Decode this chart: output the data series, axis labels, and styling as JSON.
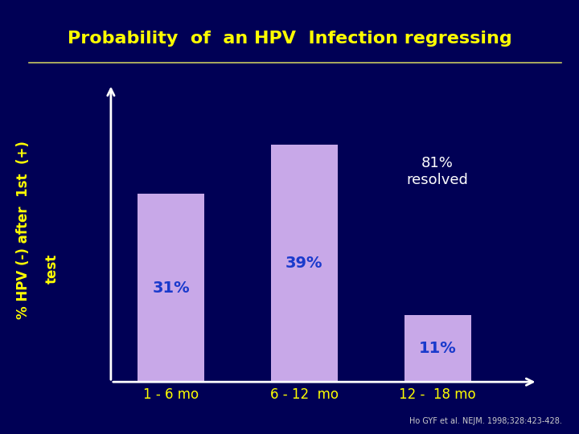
{
  "title": "Probability  of  an HPV  Infection regressing",
  "categories": [
    "1 - 6 mo",
    "6 - 12  mo",
    "12 -  18 mo"
  ],
  "values": [
    31,
    39,
    11
  ],
  "bar_color": "#C8A8E8",
  "bar_labels": [
    "31%",
    "39%",
    "11%"
  ],
  "bar_label_color": "#1a3acc",
  "ylabel_line1": "% HPV (-) after  1st  (+)",
  "ylabel_line2": "test",
  "ylabel_color": "#FFFF00",
  "title_color": "#FFFF00",
  "xlabel_color": "#FFFF00",
  "background_color": "#000055",
  "annotation_text": "81%\nresolved",
  "annotation_color": "#FFFFFF",
  "reference": "Ho GYF et al. NEJM. 1998;328:423-428.",
  "reference_color": "#CCCCCC",
  "ylim": [
    0,
    50
  ],
  "title_fontsize": 16,
  "axis_label_fontsize": 12,
  "tick_fontsize": 12,
  "bar_label_fontsize": 14,
  "annotation_fontsize": 13,
  "separator_color": "#C8C860",
  "arrow_color": "#FFFFFF"
}
